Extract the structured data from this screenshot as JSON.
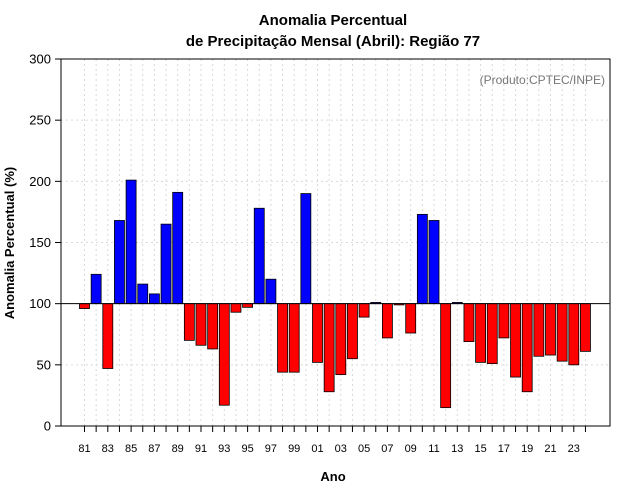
{
  "chart_data": {
    "type": "bar",
    "title_line1": "Anomalia Percentual",
    "title_line2": "de Precipitação Mensal (Abril): Região 77",
    "xlabel": "Ano",
    "ylabel": "Anomalia Percentual (%)",
    "credit": "(Produto:CPTEC/INPE)",
    "ylim": [
      0,
      300
    ],
    "yticks": [
      0,
      50,
      100,
      150,
      200,
      250,
      300
    ],
    "baseline": 100,
    "categories": [
      "81",
      "82",
      "83",
      "84",
      "85",
      "86",
      "87",
      "88",
      "89",
      "90",
      "91",
      "92",
      "93",
      "94",
      "95",
      "96",
      "97",
      "98",
      "99",
      "00",
      "01",
      "02",
      "03",
      "04",
      "05",
      "06",
      "07",
      "08",
      "09",
      "10",
      "11",
      "12",
      "13",
      "14",
      "15",
      "16",
      "17",
      "18",
      "19",
      "20",
      "21",
      "22",
      "23",
      "24"
    ],
    "xtick_labels": [
      "81",
      "83",
      "85",
      "87",
      "89",
      "91",
      "93",
      "95",
      "97",
      "99",
      "01",
      "03",
      "05",
      "07",
      "09",
      "11",
      "13",
      "15",
      "17",
      "19",
      "21",
      "23"
    ],
    "values": [
      96,
      124,
      47,
      168,
      201,
      116,
      108,
      165,
      191,
      70,
      66,
      63,
      17,
      93,
      97,
      178,
      120,
      44,
      44,
      190,
      52,
      28,
      42,
      55,
      89,
      101,
      72,
      99,
      76,
      173,
      168,
      15,
      101,
      69,
      52,
      51,
      72,
      40,
      28,
      57,
      58,
      53,
      50,
      61
    ],
    "colors": {
      "above": "#0000ff",
      "below": "#ff0000",
      "outline": "#000000"
    }
  }
}
